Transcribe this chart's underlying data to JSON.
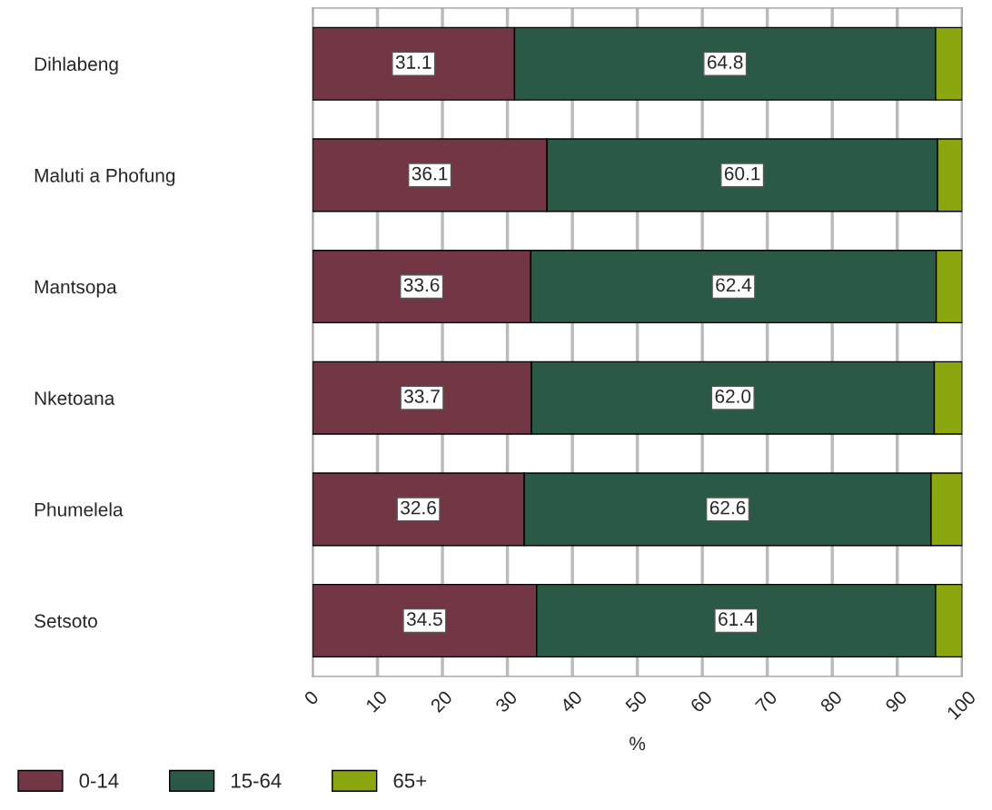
{
  "chart_data": {
    "type": "bar",
    "orientation": "horizontal",
    "stacked": true,
    "xlabel": "%",
    "categories": [
      "Dihlabeng",
      "Maluti a Phofung",
      "Mantsopa",
      "Nketoana",
      "Phumelela",
      "Setsoto"
    ],
    "series": [
      {
        "name": "0-14",
        "color": "#733645",
        "values": [
          31.1,
          36.1,
          33.6,
          33.7,
          32.6,
          34.5
        ],
        "value_labels": [
          "31.1",
          "36.1",
          "33.6",
          "33.7",
          "32.6",
          "34.5"
        ]
      },
      {
        "name": "15-64",
        "color": "#2a5a45",
        "values": [
          64.8,
          60.1,
          62.4,
          62.0,
          62.6,
          61.4
        ],
        "value_labels": [
          "64.8",
          "60.1",
          "62.4",
          "62.0",
          "62.6",
          "61.4"
        ]
      },
      {
        "name": "65+",
        "color": "#8aa70f",
        "values": [
          4.1,
          3.8,
          4.0,
          4.3,
          4.8,
          4.1
        ]
      }
    ],
    "xlim": [
      0,
      100
    ],
    "xticks": [
      0,
      10,
      20,
      30,
      40,
      50,
      60,
      70,
      80,
      90,
      100
    ],
    "grid": "x",
    "legend": "bottom left"
  }
}
